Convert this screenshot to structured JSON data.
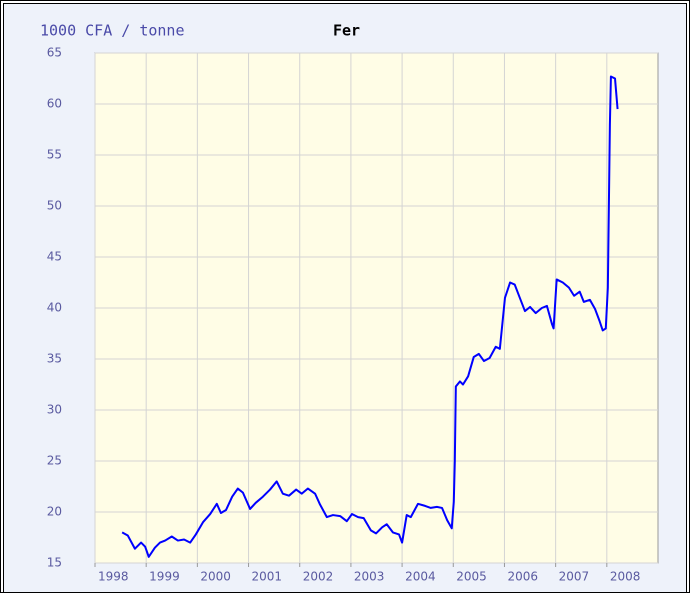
{
  "chart_data": {
    "type": "line",
    "title": "Fer",
    "y_label": "1000 CFA / tonne",
    "x": [
      1998.53,
      1998.64,
      1998.78,
      1998.9,
      1998.98,
      1999.05,
      1999.17,
      1999.27,
      1999.37,
      1999.5,
      1999.62,
      1999.74,
      1999.86,
      1999.97,
      2000.11,
      2000.25,
      2000.38,
      2000.46,
      2000.56,
      2000.68,
      2000.79,
      2000.89,
      2001.03,
      2001.14,
      2001.28,
      2001.42,
      2001.55,
      2001.67,
      2001.79,
      2001.93,
      2002.04,
      2002.16,
      2002.3,
      2002.39,
      2002.53,
      2002.65,
      2002.79,
      2002.92,
      2003.02,
      2003.14,
      2003.25,
      2003.39,
      2003.49,
      2003.61,
      2003.7,
      2003.82,
      2003.94,
      2004.0,
      2004.09,
      2004.17,
      2004.31,
      2004.45,
      2004.56,
      2004.68,
      2004.78,
      2004.88,
      2004.97,
      2005.01,
      2005.03,
      2005.05,
      2005.13,
      2005.19,
      2005.29,
      2005.4,
      2005.5,
      2005.6,
      2005.71,
      2005.83,
      2005.91,
      2006.01,
      2006.11,
      2006.2,
      2006.3,
      2006.4,
      2006.5,
      2006.61,
      2006.73,
      2006.83,
      2006.93,
      2006.96,
      2007.02,
      2007.14,
      2007.26,
      2007.36,
      2007.47,
      2007.55,
      2007.67,
      2007.77,
      2007.86,
      2007.92,
      2007.98,
      2008.02,
      2008.04,
      2008.06,
      2008.08,
      2008.16,
      2008.21
    ],
    "series": [
      {
        "name": "Fer",
        "color": "#0000ff",
        "values": [
          18.0,
          17.7,
          16.4,
          17.0,
          16.6,
          15.6,
          16.5,
          17.0,
          17.2,
          17.6,
          17.2,
          17.3,
          17.0,
          17.8,
          19.0,
          19.8,
          20.8,
          19.9,
          20.2,
          21.5,
          22.3,
          21.9,
          20.3,
          20.9,
          21.5,
          22.2,
          23.0,
          21.8,
          21.6,
          22.2,
          21.8,
          22.3,
          21.8,
          20.8,
          19.5,
          19.7,
          19.6,
          19.1,
          19.8,
          19.5,
          19.4,
          18.2,
          17.9,
          18.5,
          18.8,
          18.0,
          17.8,
          17.0,
          19.7,
          19.5,
          20.8,
          20.6,
          20.4,
          20.5,
          20.4,
          19.2,
          18.4,
          21.0,
          25.0,
          32.3,
          32.8,
          32.5,
          33.3,
          35.2,
          35.5,
          34.8,
          35.1,
          36.2,
          36.0,
          41.0,
          42.5,
          42.3,
          41.0,
          39.7,
          40.1,
          39.5,
          40.0,
          40.2,
          38.4,
          38.0,
          42.8,
          42.5,
          42.0,
          41.2,
          41.6,
          40.6,
          40.8,
          39.9,
          38.7,
          37.8,
          38.0,
          42.0,
          50.0,
          58.0,
          62.7,
          62.5,
          59.5
        ]
      }
    ],
    "xlim": [
      1998,
      2009
    ],
    "xticks": [
      1998,
      1999,
      2000,
      2001,
      2002,
      2003,
      2004,
      2005,
      2006,
      2007,
      2008
    ],
    "ylim": [
      15,
      65
    ],
    "yticks": [
      15,
      20,
      25,
      30,
      35,
      40,
      45,
      50,
      55,
      60,
      65
    ],
    "grid": true
  }
}
